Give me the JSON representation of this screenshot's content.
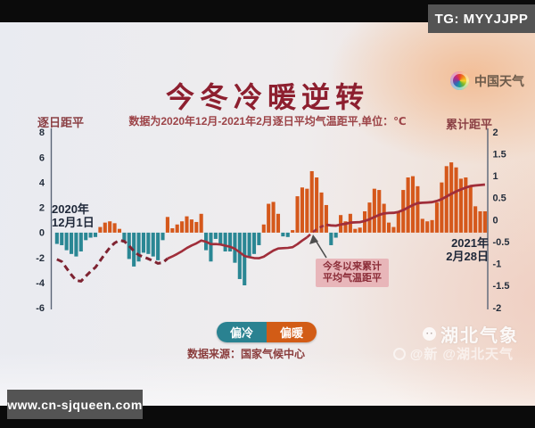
{
  "overlay": {
    "tg_badge": "TG: MYYJJPP",
    "site_badge": "www.cn-sjqueen.com"
  },
  "header": {
    "logo_text": "中国天气",
    "title": "今冬冷暖逆转",
    "subtitle": "数据为2020年12月-2021年2月逐日平均气温距平,单位：℃"
  },
  "chart_data": {
    "type": "bar",
    "title": "今冬冷暖逆转",
    "left_axis": {
      "label": "逐日距平",
      "ticks": [
        "8",
        "6",
        "4",
        "2",
        "0",
        "-2",
        "-4",
        "-6"
      ],
      "range": [
        8,
        -6
      ]
    },
    "right_axis": {
      "label": "累计距平",
      "ticks": [
        "2",
        "1.5",
        "1",
        "0.5",
        "0",
        "-0.5",
        "-1",
        "-1.5",
        "-2"
      ],
      "range": [
        2,
        -2
      ]
    },
    "start_label": [
      "2020年",
      "12月1日"
    ],
    "end_label": [
      "2021年",
      "2月28日"
    ],
    "period": "2020-12-01 to 2021-02-28",
    "daily_anomaly": [
      -0.9,
      -1.0,
      -1.4,
      -1.7,
      -1.9,
      -1.5,
      -0.6,
      -0.4,
      -0.35,
      0.45,
      0.8,
      0.9,
      0.75,
      0.3,
      -0.8,
      -2.1,
      -2.7,
      -2.3,
      -1.6,
      -1.7,
      -1.9,
      -2.2,
      -0.6,
      1.25,
      0.35,
      0.65,
      0.9,
      1.3,
      1.05,
      0.85,
      1.5,
      -1.4,
      -2.3,
      -0.5,
      -0.9,
      -1.5,
      -1.5,
      -2.4,
      -3.7,
      -4.2,
      -1.9,
      -1.7,
      -1.0,
      0.65,
      2.3,
      2.45,
      1.5,
      -0.3,
      -0.35,
      0.2,
      2.9,
      3.6,
      3.5,
      4.9,
      4.4,
      3.2,
      2.2,
      -1.0,
      -0.4,
      1.4,
      0.9,
      1.5,
      0.3,
      0.4,
      1.7,
      2.4,
      3.5,
      3.4,
      2.3,
      0.8,
      0.45,
      1.6,
      3.4,
      4.4,
      4.5,
      3.7,
      1.1,
      0.9,
      1.0,
      2.4,
      4.0,
      5.3,
      5.6,
      5.2,
      4.3,
      4.4,
      3.7,
      2.1,
      1.7,
      1.7
    ],
    "line_series_name": "今冬以来累计平均气温距平",
    "annotation_lines": [
      "今冬以来累计",
      "平均气温距平"
    ],
    "legend": [
      {
        "label": "偏冷",
        "color": "#2a8291"
      },
      {
        "label": "偏暖",
        "color": "#d25c16"
      }
    ],
    "source": "数据来源：国家气候中心",
    "colors": {
      "cold": "#2a8794",
      "warm": "#d5581b",
      "line": "#a02e3a",
      "line_dark": "#7e2331"
    }
  },
  "watermarks": {
    "brand": "湖北气象",
    "handle_partial": "@新",
    "handle": "@湖北天气"
  }
}
